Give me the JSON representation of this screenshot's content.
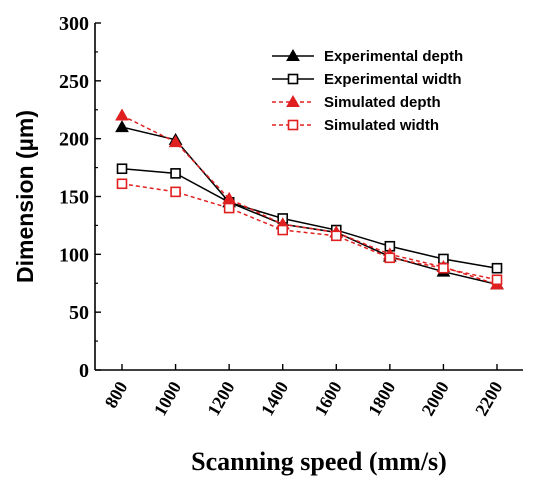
{
  "chart_data": {
    "type": "line",
    "xlabel": "Scanning speed (mm/s)",
    "ylabel": "Dimension (µm)",
    "x": [
      800,
      1000,
      1200,
      1400,
      1600,
      1800,
      2000,
      2200
    ],
    "ylim": [
      0,
      300
    ],
    "yticks": [
      0,
      50,
      100,
      150,
      200,
      250,
      300
    ],
    "grid": false,
    "legend_position": "top-right",
    "series": [
      {
        "name": "Experimental depth",
        "color": "#000000",
        "marker": "filled-triangle",
        "line": "solid",
        "values": [
          210,
          199,
          145,
          126,
          119,
          98,
          85,
          74
        ]
      },
      {
        "name": "Experimental width",
        "color": "#000000",
        "marker": "hollow-square",
        "line": "solid",
        "values": [
          174,
          170,
          145,
          131,
          121,
          107,
          96,
          88
        ]
      },
      {
        "name": "Simulated depth",
        "color": "#e02020",
        "marker": "filled-triangle",
        "line": "dashed",
        "values": [
          220,
          197,
          148,
          126,
          119,
          100,
          89,
          74
        ]
      },
      {
        "name": "Simulated width",
        "color": "#e02020",
        "marker": "hollow-square",
        "line": "dashed",
        "values": [
          161,
          154,
          140,
          121,
          116,
          97,
          88,
          78
        ]
      }
    ]
  }
}
